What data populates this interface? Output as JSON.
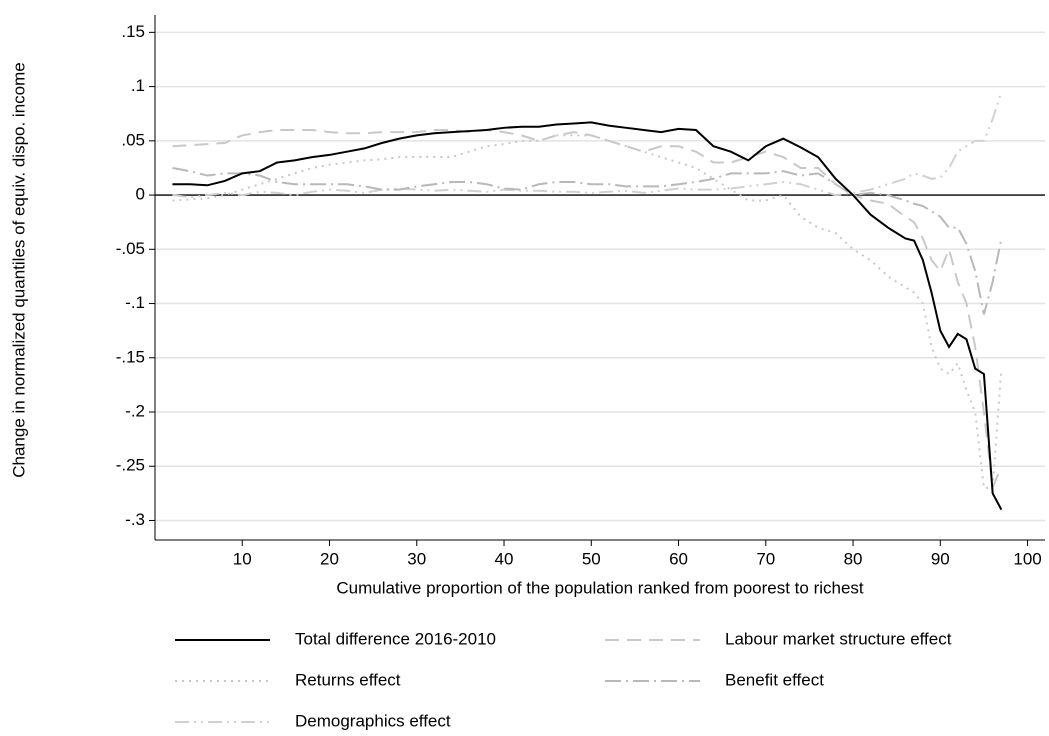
{
  "chart_data": {
    "type": "line",
    "x_label": "Cumulative proportion of the population ranked from poorest to richest",
    "y_label": "Change in normalized quantiles of equiv. dispo. income",
    "xlim": [
      0,
      102
    ],
    "ylim": [
      -0.318,
      0.166
    ],
    "xticks": [
      10,
      20,
      30,
      40,
      50,
      60,
      70,
      80,
      90,
      100
    ],
    "yticks": [
      {
        "value": 0.15,
        "label": ".15"
      },
      {
        "value": 0.1,
        "label": ".1"
      },
      {
        "value": 0.05,
        "label": ".05"
      },
      0,
      {
        "value": -0.05,
        "label": "-.05"
      },
      {
        "value": -0.1,
        "label": "-.1"
      },
      {
        "value": -0.15,
        "label": "-.15"
      },
      {
        "value": -0.2,
        "label": "-.2"
      },
      {
        "value": -0.25,
        "label": "-.25"
      },
      {
        "value": -0.3,
        "label": "-.3"
      }
    ],
    "grid": true,
    "legend": "bottom",
    "x": [
      2,
      4,
      6,
      8,
      10,
      12,
      14,
      16,
      18,
      20,
      22,
      24,
      26,
      28,
      30,
      32,
      34,
      36,
      38,
      40,
      42,
      44,
      46,
      48,
      50,
      52,
      54,
      56,
      58,
      60,
      62,
      64,
      66,
      68,
      70,
      72,
      74,
      76,
      78,
      80,
      82,
      84,
      86,
      87,
      88,
      89,
      90,
      91,
      92,
      93,
      94,
      95,
      96,
      97
    ],
    "series": [
      {
        "name": "Total difference 2016-2010",
        "color": "#000000",
        "style": "solid",
        "values": [
          0.01,
          0.01,
          0.009,
          0.013,
          0.02,
          0.022,
          0.03,
          0.032,
          0.035,
          0.037,
          0.04,
          0.043,
          0.048,
          0.052,
          0.055,
          0.057,
          0.058,
          0.059,
          0.06,
          0.062,
          0.063,
          0.063,
          0.065,
          0.066,
          0.067,
          0.064,
          0.062,
          0.06,
          0.058,
          0.061,
          0.06,
          0.045,
          0.04,
          0.032,
          0.045,
          0.052,
          0.044,
          0.035,
          0.015,
          0,
          -0.018,
          -0.03,
          -0.04,
          -0.042,
          -0.06,
          -0.09,
          -0.125,
          -0.14,
          -0.128,
          -0.133,
          -0.16,
          -0.165,
          -0.275,
          -0.29
        ]
      },
      {
        "name": "Labour market structure effect",
        "color": "#c8c8c8",
        "style": "dash",
        "values": [
          0.045,
          0.046,
          0.047,
          0.048,
          0.055,
          0.058,
          0.06,
          0.06,
          0.06,
          0.058,
          0.057,
          0.057,
          0.058,
          0.058,
          0.058,
          0.06,
          0.06,
          0.058,
          0.06,
          0.058,
          0.055,
          0.05,
          0.055,
          0.058,
          0.055,
          0.05,
          0.045,
          0.04,
          0.045,
          0.045,
          0.04,
          0.03,
          0.03,
          0.035,
          0.04,
          0.035,
          0.025,
          0.025,
          0.01,
          0,
          -0.005,
          -0.008,
          -0.02,
          -0.025,
          -0.04,
          -0.06,
          -0.07,
          -0.05,
          -0.08,
          -0.1,
          -0.14,
          -0.2,
          -0.27,
          -0.25
        ]
      },
      {
        "name": "Returns effect",
        "color": "#c8c8c8",
        "style": "dot",
        "values": [
          -0.005,
          -0.004,
          -0.003,
          0,
          0.005,
          0.01,
          0.015,
          0.02,
          0.025,
          0.028,
          0.03,
          0.032,
          0.033,
          0.035,
          0.035,
          0.035,
          0.035,
          0.04,
          0.045,
          0.047,
          0.05,
          0.05,
          0.055,
          0.055,
          0.055,
          0.05,
          0.045,
          0.04,
          0.035,
          0.03,
          0.025,
          0.015,
          0.005,
          -0.005,
          -0.005,
          0,
          -0.02,
          -0.03,
          -0.035,
          -0.05,
          -0.06,
          -0.075,
          -0.085,
          -0.09,
          -0.1,
          -0.14,
          -0.16,
          -0.165,
          -0.155,
          -0.18,
          -0.2,
          -0.27,
          -0.27,
          -0.16
        ]
      },
      {
        "name": "Benefit effect",
        "color": "#b8b8b8",
        "style": "dash-dot",
        "values": [
          0.025,
          0.022,
          0.018,
          0.02,
          0.02,
          0.018,
          0.012,
          0.01,
          0.01,
          0.01,
          0.01,
          0.008,
          0.005,
          0.005,
          0.008,
          0.01,
          0.012,
          0.012,
          0.01,
          0.006,
          0.005,
          0.01,
          0.012,
          0.012,
          0.01,
          0.01,
          0.008,
          0.008,
          0.008,
          0.01,
          0.012,
          0.015,
          0.02,
          0.02,
          0.02,
          0.022,
          0.018,
          0.02,
          0.01,
          0,
          0.002,
          0,
          -0.005,
          -0.008,
          -0.01,
          -0.015,
          -0.02,
          -0.03,
          -0.03,
          -0.045,
          -0.07,
          -0.11,
          -0.08,
          -0.04
        ]
      },
      {
        "name": "Demographics effect",
        "color": "#d0d0d0",
        "style": "dash-dot-dot",
        "values": [
          0,
          -0.002,
          0,
          0.002,
          0,
          0.003,
          0.002,
          0,
          0.003,
          0.005,
          0.004,
          0.002,
          0.005,
          0.006,
          0.005,
          0.004,
          0.005,
          0.004,
          0.003,
          0.005,
          0.004,
          0.004,
          0.003,
          0.003,
          0.002,
          0.003,
          0.004,
          0.002,
          0.004,
          0.006,
          0.005,
          0.005,
          0.006,
          0.008,
          0.01,
          0.012,
          0.01,
          0.005,
          0,
          0.002,
          0.005,
          0.01,
          0.015,
          0.02,
          0.018,
          0.015,
          0.016,
          0.025,
          0.04,
          0.045,
          0.05,
          0.05,
          0.07,
          0.095
        ]
      }
    ]
  }
}
